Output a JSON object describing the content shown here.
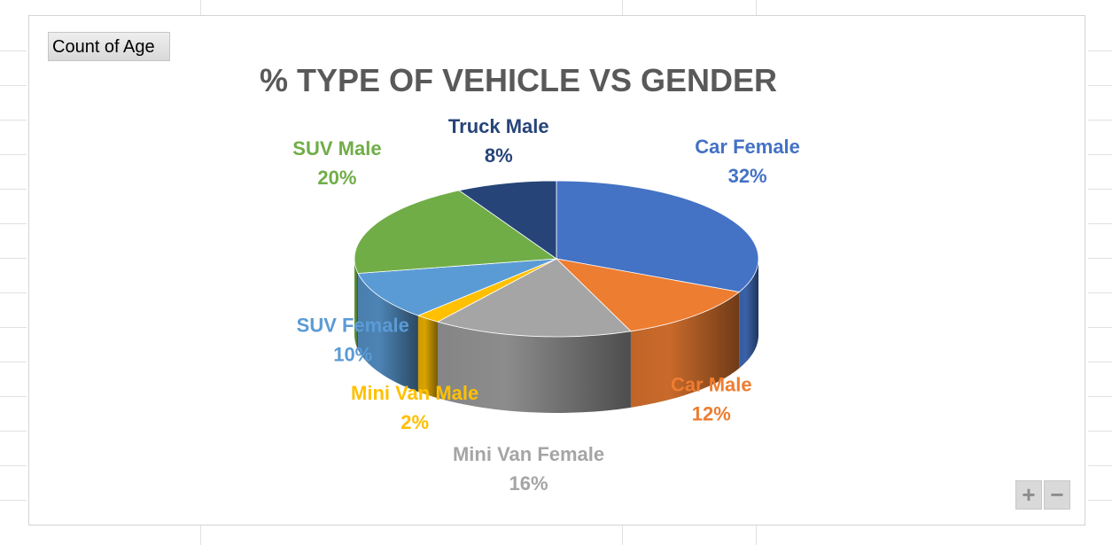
{
  "pivot_field_button": "Count of Age",
  "zoom": {
    "plus": "+",
    "minus": "−"
  },
  "chart_data": {
    "type": "pie",
    "title": "% TYPE OF VEHICLE VS GENDER",
    "categories": [
      "Car Female",
      "Car Male",
      "Mini Van Female",
      "Mini Van Male",
      "SUV Female",
      "SUV Male",
      "Truck Male"
    ],
    "values": [
      32,
      12,
      16,
      2,
      10,
      20,
      8
    ],
    "data_labels": [
      "32%",
      "12%",
      "16%",
      "2%",
      "10%",
      "20%",
      "8%"
    ],
    "colors": [
      "#4472c4",
      "#ed7d31",
      "#a5a5a5",
      "#ffc000",
      "#5b9bd5",
      "#70ad47",
      "#264478"
    ],
    "legend": "none"
  }
}
